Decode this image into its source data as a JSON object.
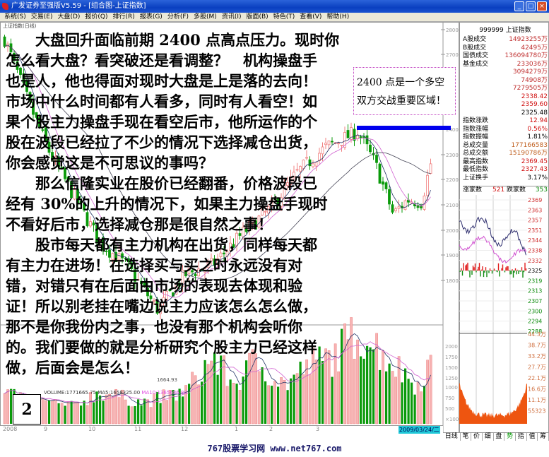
{
  "window": {
    "title": "广发证券至强版V5.59 - [组合图-上证指数]",
    "buttons": [
      "_",
      "□",
      "×"
    ]
  },
  "menu": [
    "系统(S)",
    "交易(E)",
    "大盘(D)",
    "报价(Q)",
    "排行(R)",
    "报表(G)",
    "分析(F)",
    "多股(M)",
    "资讯(I)",
    "版面(B)",
    "特色(T)",
    "查看(V)",
    "帮助(H)"
  ],
  "chart": {
    "header": "上证指数(日线)",
    "price_axis": [
      "2800",
      "2700",
      "2400",
      "2300",
      "2200",
      "2100",
      "2000",
      "1900",
      "1800"
    ],
    "low_marker": "1664.93",
    "volume_label": {
      "volume": "VOLUME:1771665.75",
      "ma5": "MA5:1658325.00",
      "ma10": "MA10:1365686.80"
    },
    "volume_axis": [
      "2000",
      "1750",
      "1500",
      "1250",
      "1000",
      "750",
      "500",
      "×1000"
    ],
    "date_axis": [
      "2008",
      "9",
      "10",
      "11",
      "12",
      "1",
      "2",
      "3"
    ],
    "current_date": "2009/03/24/二",
    "colors": {
      "up": "#f08080",
      "down": "#0a9a0a",
      "ma_dark": "#223366",
      "ma_pink": "#d060d0",
      "resistance": "#0000ee"
    }
  },
  "article": {
    "lines": [
      "　　大盘回升面临前期 2400 点高点压力。现时你",
      "怎么看大盘？看突破还是看调整？　机构操盘手",
      "也是人，他也得面对现时大盘是上是落的去向！",
      "市场中什么时间都有人看多，同时有人看空！如",
      "果个股主力操盘手现在看空后市，他所运作的个",
      "股在波段已经拉了不少的情况下选择减仓出货，",
      "你会感觉这是不可思议的事吗？",
      "　　那么信隆实业在股价已经翻番，价格波段已",
      "经有 30%的上升的情况下，如果主力操盘手现时",
      "不看好后市，选择减仓那是很自然之事！",
      "　　股市每天都有主力机构在出货，同样每天都",
      "有主力在进场！在选择买与买之时永远没有对",
      "错，对错只有在后面由市场的表现去体现和验",
      "证！所以别老挂在嘴边说主力应该怎么怎么做，",
      "那不是你我份内之事，也没有那个机构会听你",
      "的。我们要做的就是分析研究个股主力已经这样",
      "做，后面会是怎么！"
    ]
  },
  "callout": {
    "text": "2400 点是一个多空\n双方交战重要区域！"
  },
  "badge": "2",
  "panel": {
    "header": "999999 上证指数",
    "rows": [
      {
        "label": "A股成交",
        "value": "14923255万",
        "color": "#c03030"
      },
      {
        "label": "B股成交",
        "value": "42495万",
        "color": "#c03030"
      },
      {
        "label": "国债成交",
        "value": "136094780万",
        "color": "#c03030"
      },
      {
        "label": "基金成交",
        "value": "233036万",
        "color": "#c03030"
      },
      {
        "label": "",
        "value": "3094279万",
        "color": "#c03030"
      },
      {
        "label": "",
        "value": "74908万",
        "color": "#c03030"
      },
      {
        "label": "",
        "value": "7279505万",
        "color": "#c03030"
      },
      {
        "label": "",
        "value": "2338.42",
        "color": "#d01010"
      },
      {
        "label": "",
        "value": "2359.60",
        "color": "#d01010"
      },
      {
        "label": "",
        "value": "2325.48",
        "color": "#000000"
      },
      {
        "label": "指数涨跌",
        "value": "12.94",
        "color": "#d01010"
      },
      {
        "label": "指数涨幅",
        "value": "0.56%",
        "color": "#d01010"
      },
      {
        "label": "指数振幅",
        "value": "1.81%",
        "color": "#000000"
      },
      {
        "label": "总成交量",
        "value": "177166583",
        "color": "#c06020"
      },
      {
        "label": "总成交额",
        "value": "15190786万",
        "color": "#c06020"
      },
      {
        "label": "最高指数",
        "value": "2369.45",
        "color": "#d01010"
      },
      {
        "label": "最低指数",
        "value": "2327.43",
        "color": "#d01010"
      },
      {
        "label": "上证换手",
        "value": "3.17%",
        "color": "#000000"
      }
    ],
    "adv_label": "涨家数",
    "adv": "521",
    "dec_label": "跌家数",
    "dec": "353",
    "intraday_axis": [
      "2369",
      "2363",
      "2357",
      "2351",
      "2344",
      "2338",
      "2332",
      "2325",
      "2319",
      "2313",
      "2307",
      "2300",
      "2294",
      "2288"
    ],
    "intraday_vol_axis": [
      "44.3万",
      "38.7万",
      "33.2万",
      "27.7万",
      "22.1万",
      "16.6万",
      "11.1万",
      "55323"
    ]
  },
  "tabs": [
    "日线",
    "笔",
    "价",
    "细",
    "盘",
    "势",
    "指",
    "值",
    "筹"
  ],
  "active_tab": "势",
  "footer": "767股票学习网 www.net767.com"
}
